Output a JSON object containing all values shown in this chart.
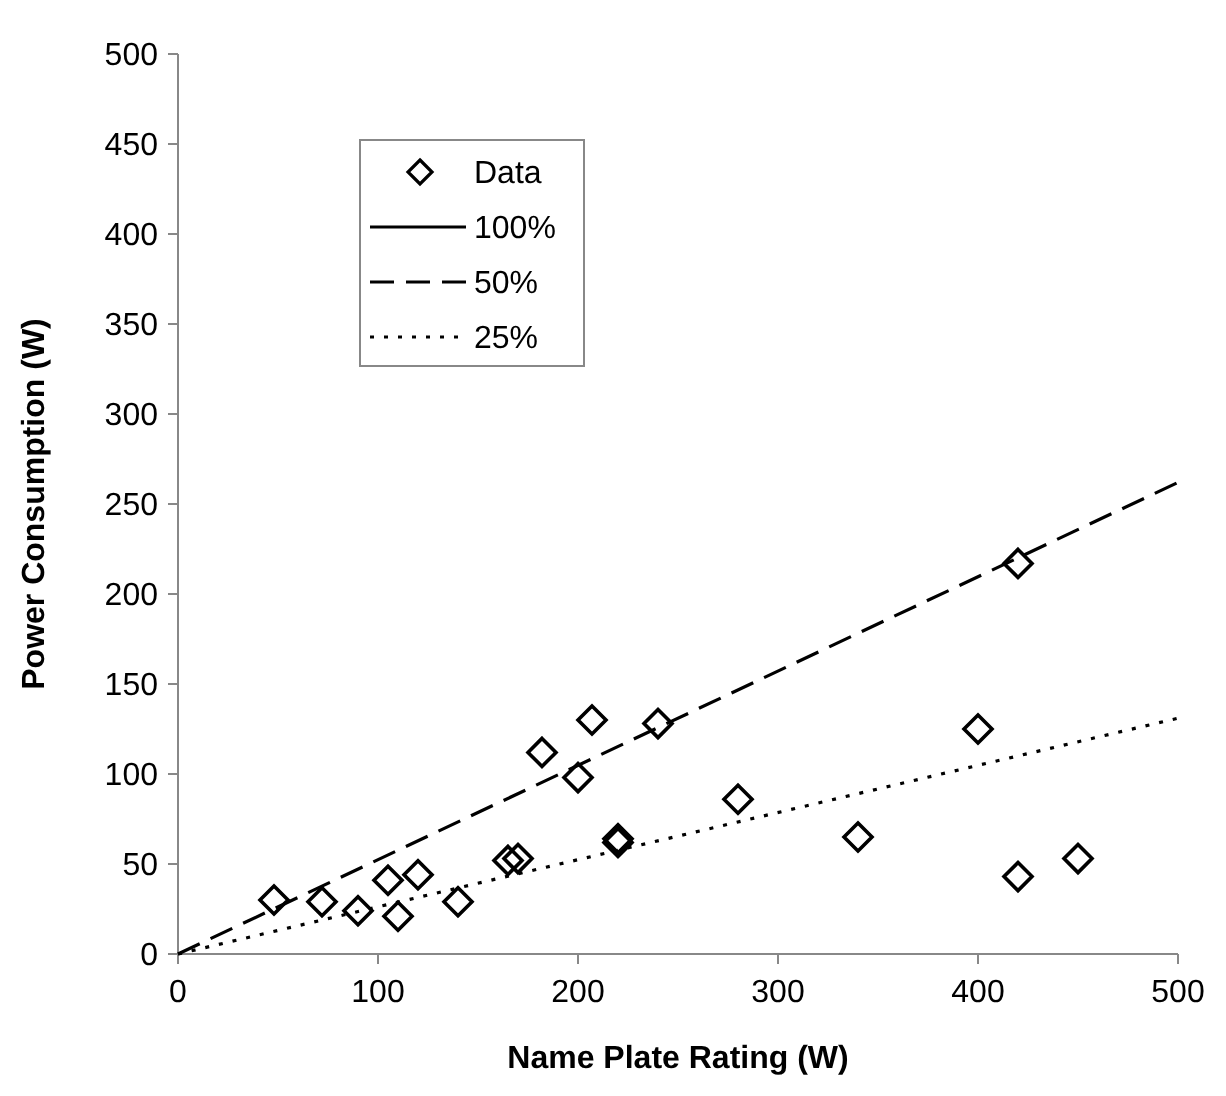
{
  "chart_data": {
    "type": "scatter",
    "xlabel": "Name Plate Rating (W)",
    "ylabel": "Power Consumption (W)",
    "xlim": [
      0,
      500
    ],
    "ylim": [
      0,
      500
    ],
    "xticks": [
      0,
      100,
      200,
      300,
      400,
      500
    ],
    "yticks": [
      0,
      50,
      100,
      150,
      200,
      250,
      300,
      350,
      400,
      450,
      500
    ],
    "grid": false,
    "legend": "top left",
    "series": [
      {
        "name": "Data",
        "marker": "diamond",
        "color": "#000000",
        "x": [
          48,
          72,
          90,
          105,
          110,
          120,
          140,
          165,
          170,
          182,
          200,
          207,
          220,
          220,
          240,
          280,
          340,
          400,
          420,
          420,
          450
        ],
        "values": [
          30,
          29,
          24,
          41,
          21,
          44,
          29,
          52,
          53,
          112,
          98,
          130,
          64,
          62,
          128,
          86,
          65,
          125,
          217,
          43,
          53
        ]
      },
      {
        "name": "100%",
        "type": "line",
        "line_style": "solid",
        "color": "#000000"
      },
      {
        "name": "50%",
        "type": "line",
        "line_style": "dashed",
        "color": "#000000",
        "x": [
          0,
          500
        ],
        "values": [
          0,
          262
        ]
      },
      {
        "name": "25%",
        "type": "line",
        "line_style": "dotted",
        "color": "#000000",
        "x": [
          0,
          500
        ],
        "values": [
          0,
          131
        ]
      }
    ]
  }
}
